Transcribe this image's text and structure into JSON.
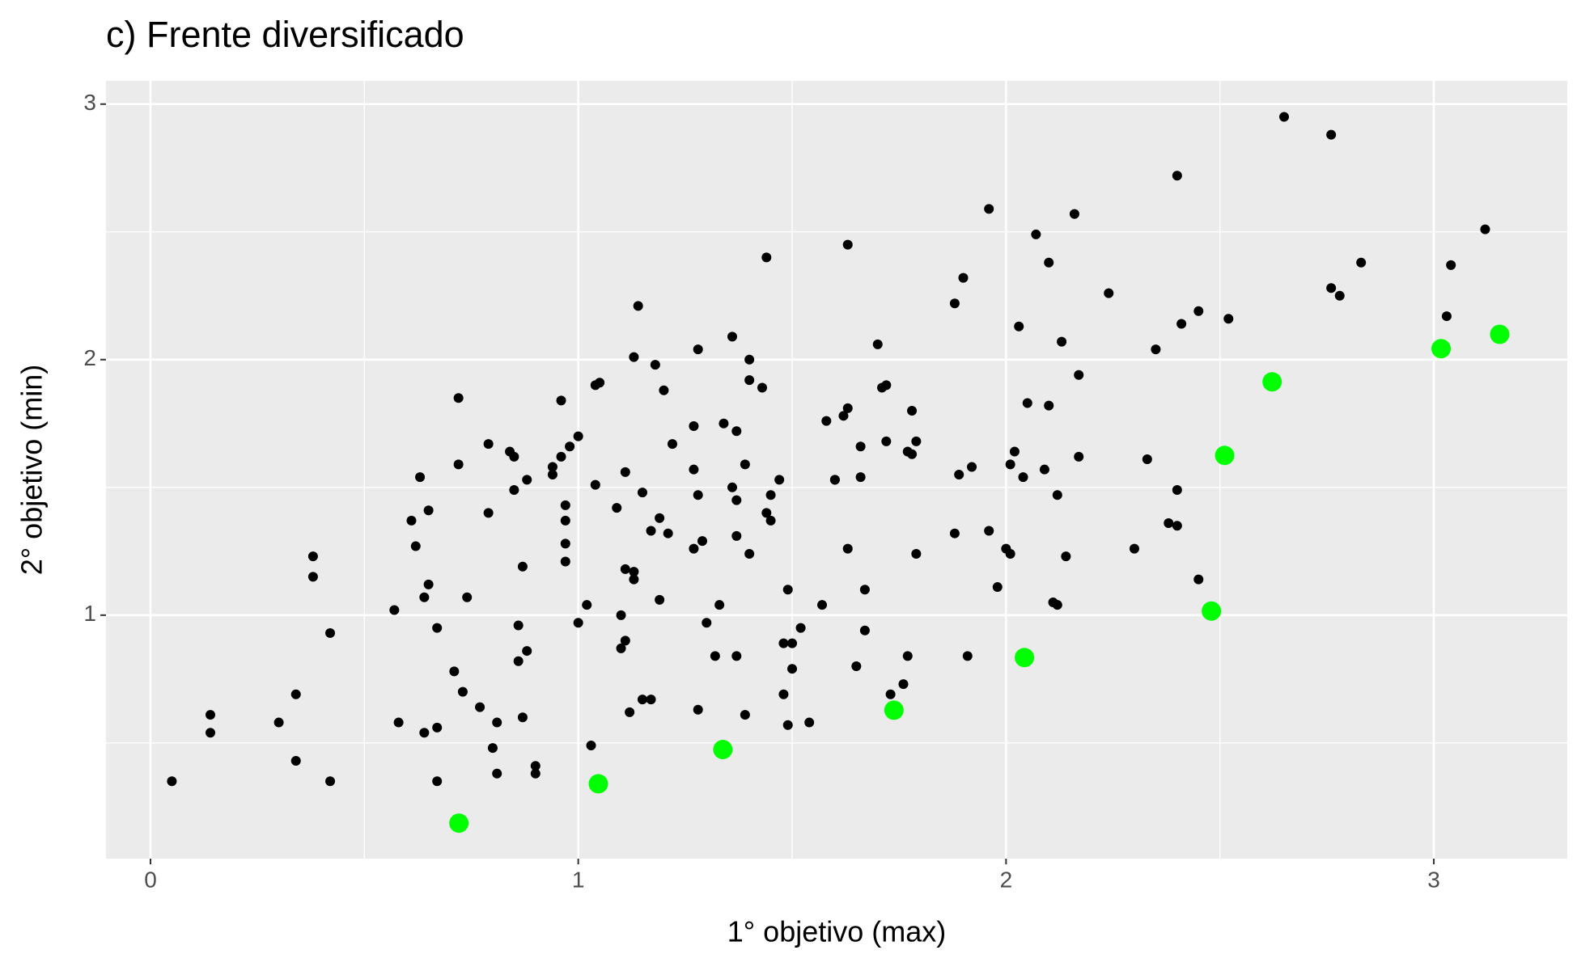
{
  "chart_data": {
    "type": "scatter",
    "title": "c) Frente diversificado",
    "x_label": "1° objetivo (max)",
    "y_label": "2° objetivo (min)",
    "xlim": [
      -0.104,
      3.312
    ],
    "ylim": [
      0.047,
      3.091
    ],
    "xticks": [
      0,
      1,
      2,
      3
    ],
    "yticks": [
      1,
      2,
      3
    ],
    "minor_xticks": [
      0.5,
      1.5,
      2.5
    ],
    "minor_yticks": [
      0.5,
      1.5,
      2.5
    ],
    "grid": true,
    "background": "#ebebeb",
    "series": [
      {
        "color": "#000000",
        "size": 6,
        "x": [
          0.05,
          0.14,
          0.14,
          0.3,
          0.34,
          0.34,
          0.38,
          0.38,
          0.42,
          0.42,
          0.57,
          0.58,
          0.61,
          0.62,
          0.63,
          0.64,
          0.64,
          0.65,
          0.65,
          0.67,
          0.67,
          0.67,
          0.71,
          0.72,
          0.72,
          0.73,
          0.74,
          0.77,
          0.79,
          0.79,
          0.8,
          0.81,
          0.81,
          0.84,
          0.85,
          0.85,
          0.86,
          0.86,
          0.87,
          0.87,
          0.88,
          0.88,
          0.9,
          0.9,
          0.94,
          0.94,
          0.96,
          0.96,
          0.97,
          0.97,
          0.97,
          0.97,
          0.98,
          1.0,
          1.0,
          1.02,
          1.03,
          1.04,
          1.04,
          1.05,
          1.09,
          1.1,
          1.1,
          1.11,
          1.11,
          1.11,
          1.12,
          1.13,
          1.13,
          1.13,
          1.14,
          1.15,
          1.15,
          1.17,
          1.17,
          1.18,
          1.19,
          1.19,
          1.2,
          1.21,
          1.22,
          1.27,
          1.27,
          1.27,
          1.28,
          1.28,
          1.28,
          1.29,
          1.3,
          1.32,
          1.33,
          1.34,
          1.36,
          1.36,
          1.37,
          1.37,
          1.37,
          1.37,
          1.39,
          1.39,
          1.4,
          1.4,
          1.4,
          1.43,
          1.44,
          1.44,
          1.45,
          1.45,
          1.47,
          1.48,
          1.48,
          1.49,
          1.49,
          1.5,
          1.5,
          1.52,
          1.54,
          1.57,
          1.58,
          1.6,
          1.6,
          1.62,
          1.63,
          1.63,
          1.63,
          1.65,
          1.66,
          1.66,
          1.67,
          1.67,
          1.7,
          1.71,
          1.72,
          1.72,
          1.73,
          1.76,
          1.77,
          1.77,
          1.78,
          1.78,
          1.79,
          1.79,
          1.88,
          1.88,
          1.89,
          1.9,
          1.91,
          1.92,
          1.96,
          1.96,
          1.98,
          2.0,
          2.01,
          2.01,
          2.02,
          2.03,
          2.04,
          2.05,
          2.07,
          2.09,
          2.1,
          2.1,
          2.11,
          2.12,
          2.12,
          2.13,
          2.14,
          2.16,
          2.17,
          2.17,
          2.24,
          2.3,
          2.33,
          2.35,
          2.38,
          2.4,
          2.4,
          2.4,
          2.41,
          2.45,
          2.45,
          2.52,
          2.65,
          2.76,
          2.76,
          2.78,
          2.83,
          3.03,
          3.04,
          3.12
        ],
        "y": [
          0.35,
          0.61,
          0.54,
          0.58,
          0.69,
          0.43,
          1.23,
          1.15,
          0.93,
          0.35,
          1.02,
          0.58,
          1.37,
          1.27,
          1.54,
          0.54,
          1.07,
          1.41,
          1.12,
          0.95,
          0.56,
          0.35,
          0.78,
          1.85,
          1.59,
          0.7,
          1.07,
          0.64,
          1.67,
          1.4,
          0.48,
          0.38,
          0.58,
          1.64,
          1.62,
          1.49,
          0.96,
          0.82,
          0.6,
          1.19,
          0.86,
          1.53,
          0.41,
          0.38,
          1.55,
          1.58,
          1.62,
          1.84,
          1.43,
          1.37,
          1.28,
          1.21,
          1.66,
          1.7,
          0.97,
          1.04,
          0.49,
          1.51,
          1.9,
          1.91,
          1.42,
          0.87,
          1.0,
          0.9,
          1.56,
          1.18,
          0.62,
          1.14,
          1.17,
          2.01,
          2.21,
          1.48,
          0.67,
          0.67,
          1.33,
          1.98,
          1.38,
          1.06,
          1.88,
          1.32,
          1.67,
          1.57,
          1.74,
          1.26,
          1.47,
          2.04,
          0.63,
          1.29,
          0.97,
          0.84,
          1.04,
          1.75,
          1.5,
          2.09,
          1.31,
          1.45,
          1.72,
          0.84,
          1.59,
          0.61,
          2.0,
          1.92,
          1.24,
          1.89,
          2.4,
          1.4,
          1.47,
          1.37,
          1.53,
          0.89,
          0.69,
          0.57,
          1.1,
          0.89,
          0.79,
          0.95,
          0.58,
          1.04,
          1.76,
          1.53,
          1.53,
          1.78,
          2.45,
          1.26,
          1.81,
          0.8,
          1.54,
          1.66,
          0.94,
          1.1,
          2.06,
          1.89,
          1.9,
          1.68,
          0.69,
          0.73,
          1.64,
          0.84,
          1.8,
          1.63,
          1.24,
          1.68,
          2.22,
          1.32,
          1.55,
          2.32,
          0.84,
          1.58,
          2.59,
          1.33,
          1.11,
          1.26,
          1.59,
          1.24,
          1.64,
          2.13,
          1.54,
          1.83,
          2.49,
          1.57,
          2.38,
          1.82,
          1.05,
          1.47,
          1.04,
          2.07,
          1.23,
          2.57,
          1.62,
          1.94,
          2.26,
          1.26,
          1.61,
          2.04,
          1.36,
          1.35,
          1.49,
          2.72,
          2.14,
          2.19,
          1.14,
          2.16,
          2.95,
          2.88,
          2.28,
          2.25,
          2.38,
          2.17,
          2.37,
          2.51
        ]
      },
      {
        "color": "#00ff00",
        "size": 12,
        "x": [
          0.721,
          1.047,
          1.338,
          1.738,
          2.043,
          2.48,
          2.511,
          2.622,
          3.017,
          3.154
        ],
        "y": [
          0.186,
          0.34,
          0.474,
          0.628,
          0.834,
          1.016,
          1.625,
          1.913,
          2.043,
          2.099
        ]
      }
    ]
  }
}
